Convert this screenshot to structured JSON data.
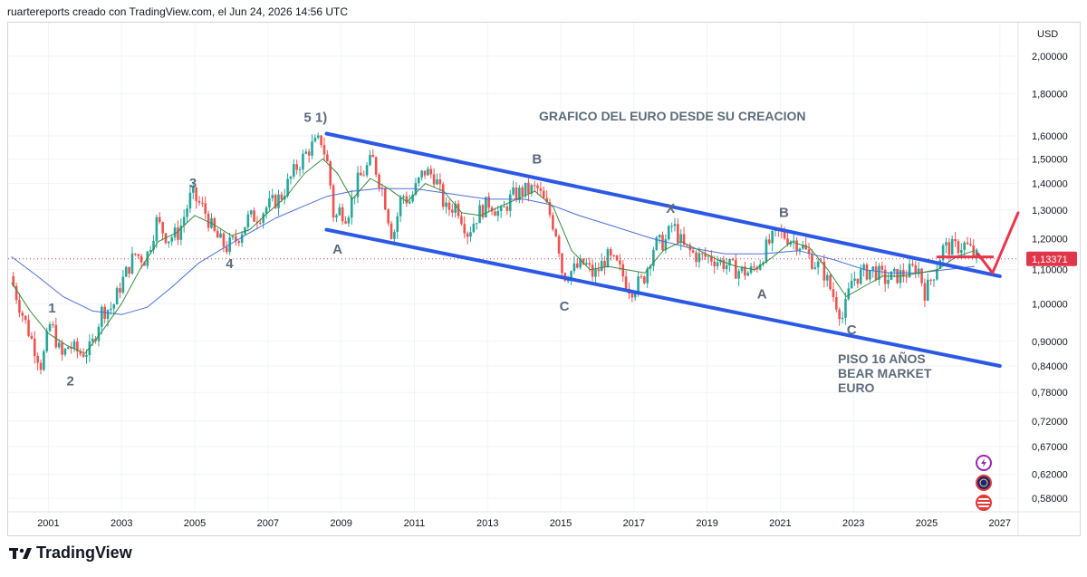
{
  "header": {
    "attribution": "ruartereports creado con TradingView.com, el Jun 24, 2026 14:56 UTC"
  },
  "footer": {
    "brand": "TradingView"
  },
  "icons": {
    "logo": "tradingview-logo-icon",
    "flash": "lightning-icon",
    "globe": "globe-icon",
    "flag": "us-flag-icon"
  },
  "colors": {
    "channel": "#2b59e6",
    "price_line": "#e0364a",
    "sma_fast": "#3a8a3a",
    "sma_slow": "#4a6fd8",
    "candle_up": "#26a69a",
    "candle_down": "#ef5350",
    "arrow": "#e8364e"
  },
  "chart_data": {
    "type": "candlestick",
    "title": "GRAFICO DEL EURO DESDE SU CREACION",
    "currency": "USD",
    "y_scale": "log",
    "ylim": [
      0.55,
      2.2
    ],
    "xlim": [
      1999.9,
      2027.5
    ],
    "y_ticks": [
      "2,00000",
      "1,80000",
      "1,60000",
      "1,50000",
      "1,40000",
      "1,30000",
      "1,20000",
      "1,10000",
      "1,00000",
      "0,90000",
      "0,84000",
      "0,78000",
      "0,72000",
      "0,67000",
      "0,62000",
      "0,58000"
    ],
    "x_ticks": [
      "2001",
      "2003",
      "2005",
      "2007",
      "2009",
      "2011",
      "2013",
      "2015",
      "2017",
      "2019",
      "2021",
      "2023",
      "2025",
      "2027"
    ],
    "last_price": {
      "label": "1,13371",
      "value": 1.13371
    },
    "price_path": [
      [
        2000.0,
        1.08
      ],
      [
        2000.3,
        0.98
      ],
      [
        2000.6,
        0.9
      ],
      [
        2000.85,
        0.84
      ],
      [
        2001.1,
        0.95
      ],
      [
        2001.4,
        0.86
      ],
      [
        2001.6,
        0.89
      ],
      [
        2001.9,
        0.87
      ],
      [
        2002.2,
        0.88
      ],
      [
        2002.5,
        0.98
      ],
      [
        2002.8,
        0.99
      ],
      [
        2003.0,
        1.05
      ],
      [
        2003.4,
        1.15
      ],
      [
        2003.7,
        1.13
      ],
      [
        2004.0,
        1.26
      ],
      [
        2004.3,
        1.2
      ],
      [
        2004.6,
        1.22
      ],
      [
        2004.95,
        1.36
      ],
      [
        2005.3,
        1.3
      ],
      [
        2005.6,
        1.21
      ],
      [
        2005.9,
        1.17
      ],
      [
        2006.2,
        1.2
      ],
      [
        2006.5,
        1.27
      ],
      [
        2006.8,
        1.28
      ],
      [
        2007.0,
        1.31
      ],
      [
        2007.4,
        1.35
      ],
      [
        2007.8,
        1.46
      ],
      [
        2008.2,
        1.55
      ],
      [
        2008.5,
        1.58
      ],
      [
        2008.7,
        1.46
      ],
      [
        2008.85,
        1.26
      ],
      [
        2009.0,
        1.3
      ],
      [
        2009.2,
        1.28
      ],
      [
        2009.5,
        1.41
      ],
      [
        2009.9,
        1.5
      ],
      [
        2010.2,
        1.36
      ],
      [
        2010.45,
        1.2
      ],
      [
        2010.7,
        1.36
      ],
      [
        2010.9,
        1.33
      ],
      [
        2011.3,
        1.45
      ],
      [
        2011.6,
        1.43
      ],
      [
        2011.9,
        1.3
      ],
      [
        2012.2,
        1.32
      ],
      [
        2012.5,
        1.22
      ],
      [
        2012.8,
        1.29
      ],
      [
        2013.1,
        1.33
      ],
      [
        2013.4,
        1.28
      ],
      [
        2013.7,
        1.35
      ],
      [
        2014.0,
        1.37
      ],
      [
        2014.4,
        1.38
      ],
      [
        2014.7,
        1.3
      ],
      [
        2014.95,
        1.21
      ],
      [
        2015.1,
        1.08
      ],
      [
        2015.4,
        1.1
      ],
      [
        2015.7,
        1.12
      ],
      [
        2015.95,
        1.08
      ],
      [
        2016.3,
        1.14
      ],
      [
        2016.6,
        1.11
      ],
      [
        2016.95,
        1.04
      ],
      [
        2017.3,
        1.07
      ],
      [
        2017.6,
        1.18
      ],
      [
        2017.9,
        1.19
      ],
      [
        2018.1,
        1.25
      ],
      [
        2018.4,
        1.17
      ],
      [
        2018.8,
        1.14
      ],
      [
        2019.1,
        1.14
      ],
      [
        2019.5,
        1.12
      ],
      [
        2019.8,
        1.1
      ],
      [
        2020.2,
        1.09
      ],
      [
        2020.45,
        1.12
      ],
      [
        2020.7,
        1.18
      ],
      [
        2021.0,
        1.22
      ],
      [
        2021.3,
        1.2
      ],
      [
        2021.6,
        1.18
      ],
      [
        2021.9,
        1.13
      ],
      [
        2022.2,
        1.1
      ],
      [
        2022.5,
        1.02
      ],
      [
        2022.75,
        0.96
      ],
      [
        2023.0,
        1.07
      ],
      [
        2023.3,
        1.09
      ],
      [
        2023.6,
        1.1
      ],
      [
        2023.9,
        1.07
      ],
      [
        2024.2,
        1.08
      ],
      [
        2024.5,
        1.09
      ],
      [
        2024.8,
        1.11
      ],
      [
        2025.0,
        1.03
      ],
      [
        2025.2,
        1.08
      ],
      [
        2025.5,
        1.17
      ],
      [
        2025.8,
        1.17
      ],
      [
        2026.1,
        1.18
      ],
      [
        2026.4,
        1.14
      ]
    ],
    "sma_fast": [
      [
        2000.0,
        1.06
      ],
      [
        2000.5,
        0.98
      ],
      [
        2001.0,
        0.92
      ],
      [
        2001.5,
        0.89
      ],
      [
        2002.0,
        0.87
      ],
      [
        2002.5,
        0.93
      ],
      [
        2003.0,
        1.0
      ],
      [
        2003.5,
        1.1
      ],
      [
        2004.0,
        1.19
      ],
      [
        2004.5,
        1.22
      ],
      [
        2005.0,
        1.28
      ],
      [
        2005.5,
        1.25
      ],
      [
        2006.0,
        1.21
      ],
      [
        2006.5,
        1.23
      ],
      [
        2007.0,
        1.29
      ],
      [
        2007.5,
        1.35
      ],
      [
        2008.0,
        1.44
      ],
      [
        2008.5,
        1.5
      ],
      [
        2008.9,
        1.44
      ],
      [
        2009.3,
        1.34
      ],
      [
        2009.8,
        1.42
      ],
      [
        2010.3,
        1.38
      ],
      [
        2010.8,
        1.33
      ],
      [
        2011.3,
        1.4
      ],
      [
        2011.8,
        1.37
      ],
      [
        2012.3,
        1.29
      ],
      [
        2012.8,
        1.28
      ],
      [
        2013.3,
        1.31
      ],
      [
        2013.8,
        1.34
      ],
      [
        2014.3,
        1.37
      ],
      [
        2014.8,
        1.31
      ],
      [
        2015.3,
        1.16
      ],
      [
        2015.8,
        1.1
      ],
      [
        2016.3,
        1.11
      ],
      [
        2016.8,
        1.1
      ],
      [
        2017.3,
        1.09
      ],
      [
        2017.8,
        1.16
      ],
      [
        2018.3,
        1.19
      ],
      [
        2018.8,
        1.16
      ],
      [
        2019.3,
        1.13
      ],
      [
        2019.8,
        1.11
      ],
      [
        2020.3,
        1.1
      ],
      [
        2020.8,
        1.14
      ],
      [
        2021.3,
        1.19
      ],
      [
        2021.8,
        1.17
      ],
      [
        2022.3,
        1.1
      ],
      [
        2022.8,
        1.02
      ],
      [
        2023.3,
        1.05
      ],
      [
        2023.8,
        1.08
      ],
      [
        2024.3,
        1.08
      ],
      [
        2024.8,
        1.09
      ],
      [
        2025.3,
        1.1
      ],
      [
        2025.8,
        1.14
      ],
      [
        2026.3,
        1.16
      ]
    ],
    "sma_slow": [
      [
        2000.0,
        1.14
      ],
      [
        2000.7,
        1.08
      ],
      [
        2001.4,
        1.02
      ],
      [
        2002.2,
        0.98
      ],
      [
        2003.0,
        0.97
      ],
      [
        2003.7,
        0.99
      ],
      [
        2004.4,
        1.05
      ],
      [
        2005.1,
        1.12
      ],
      [
        2005.8,
        1.17
      ],
      [
        2006.5,
        1.22
      ],
      [
        2007.2,
        1.27
      ],
      [
        2007.9,
        1.31
      ],
      [
        2008.6,
        1.35
      ],
      [
        2009.3,
        1.37
      ],
      [
        2010.0,
        1.38
      ],
      [
        2011.0,
        1.38
      ],
      [
        2012.0,
        1.36
      ],
      [
        2013.0,
        1.34
      ],
      [
        2014.0,
        1.34
      ],
      [
        2014.7,
        1.32
      ],
      [
        2015.5,
        1.28
      ],
      [
        2016.5,
        1.24
      ],
      [
        2017.5,
        1.2
      ],
      [
        2018.5,
        1.17
      ],
      [
        2019.5,
        1.15
      ],
      [
        2020.5,
        1.15
      ],
      [
        2021.5,
        1.16
      ],
      [
        2022.5,
        1.13
      ],
      [
        2023.3,
        1.1
      ],
      [
        2024.0,
        1.09
      ],
      [
        2024.8,
        1.09
      ],
      [
        2025.5,
        1.1
      ],
      [
        2026.3,
        1.11
      ]
    ],
    "channel_upper": [
      [
        2008.6,
        1.61
      ],
      [
        2027.0,
        1.08
      ]
    ],
    "channel_lower": [
      [
        2008.6,
        1.23
      ],
      [
        2027.0,
        0.84
      ]
    ],
    "red_horizontal": [
      [
        2025.3,
        1.14
      ],
      [
        2026.8,
        1.14
      ]
    ],
    "red_arrow": [
      [
        2026.4,
        1.15
      ],
      [
        2026.8,
        1.09
      ],
      [
        2027.5,
        1.29
      ]
    ],
    "wave_labels": [
      {
        "label": "1",
        "x": 2001.1,
        "y": 0.975
      },
      {
        "label": "2",
        "x": 2001.6,
        "y": 0.795
      },
      {
        "label": "3",
        "x": 2004.95,
        "y": 1.385
      },
      {
        "label": "4",
        "x": 2005.95,
        "y": 1.105
      },
      {
        "label": "5 1)",
        "x": 2008.3,
        "y": 1.665
      },
      {
        "label": "A",
        "x": 2008.9,
        "y": 1.15
      },
      {
        "label": "B",
        "x": 2014.35,
        "y": 1.48
      },
      {
        "label": "C",
        "x": 2015.1,
        "y": 0.98
      },
      {
        "label": "X",
        "x": 2018.0,
        "y": 1.29
      },
      {
        "label": "A",
        "x": 2020.5,
        "y": 1.015
      },
      {
        "label": "B",
        "x": 2021.1,
        "y": 1.275
      },
      {
        "label": "C",
        "x": 2022.95,
        "y": 0.918
      }
    ],
    "annotation": [
      "PISO 16 AÑOS",
      "BEAR MARKET",
      "EURO"
    ]
  }
}
